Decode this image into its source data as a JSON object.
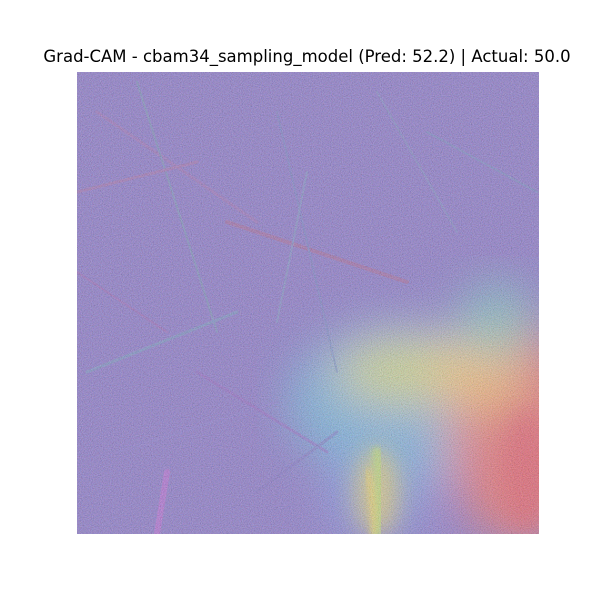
{
  "figure": {
    "title": "Grad-CAM - cbam34_sampling_model (Pred: 52.2) | Actual: 50.0"
  },
  "heatmap": {
    "colormap": "jet",
    "base_color": "#6a4fa8",
    "hot_color": "#e23b2a",
    "warm_color": "#f2d52a",
    "mid_color": "#38c9b8"
  }
}
